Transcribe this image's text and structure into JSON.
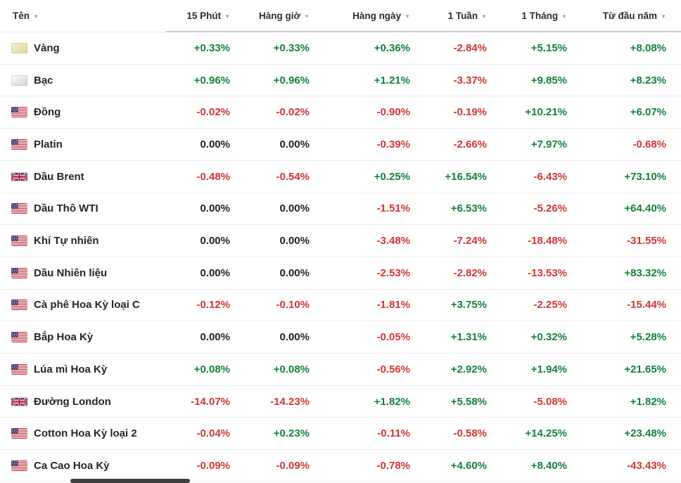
{
  "colors": {
    "positive": "#15803d",
    "negative": "#d23535",
    "neutral": "#202226"
  },
  "icons": {
    "sort_arrow": "▼"
  },
  "table": {
    "columns": [
      {
        "label": "Tên"
      },
      {
        "label": "15 Phút"
      },
      {
        "label": "Hàng giờ"
      },
      {
        "label": "Hàng ngày"
      },
      {
        "label": "1 Tuần"
      },
      {
        "label": "1 Tháng"
      },
      {
        "label": "Từ đầu năm"
      }
    ],
    "rows": [
      {
        "name": "Vàng",
        "flag": "gold",
        "values": [
          "+0.33%",
          "+0.33%",
          "+0.36%",
          "-2.84%",
          "+5.15%",
          "+8.08%"
        ]
      },
      {
        "name": "Bạc",
        "flag": "silver",
        "values": [
          "+0.96%",
          "+0.96%",
          "+1.21%",
          "-3.37%",
          "+9.85%",
          "+8.23%"
        ]
      },
      {
        "name": "Đồng",
        "flag": "us",
        "values": [
          "-0.02%",
          "-0.02%",
          "-0.90%",
          "-0.19%",
          "+10.21%",
          "+6.07%"
        ]
      },
      {
        "name": "Platin",
        "flag": "us",
        "values": [
          "0.00%",
          "0.00%",
          "-0.39%",
          "-2.66%",
          "+7.97%",
          "-0.68%"
        ]
      },
      {
        "name": "Dầu Brent",
        "flag": "uk",
        "values": [
          "-0.48%",
          "-0.54%",
          "+0.25%",
          "+16.54%",
          "-6.43%",
          "+73.10%"
        ]
      },
      {
        "name": "Dầu Thô WTI",
        "flag": "us",
        "values": [
          "0.00%",
          "0.00%",
          "-1.51%",
          "+6.53%",
          "-5.26%",
          "+64.40%"
        ]
      },
      {
        "name": "Khí Tự nhiên",
        "flag": "us",
        "values": [
          "0.00%",
          "0.00%",
          "-3.48%",
          "-7.24%",
          "-18.48%",
          "-31.55%"
        ]
      },
      {
        "name": "Dầu Nhiên liệu",
        "flag": "us",
        "values": [
          "0.00%",
          "0.00%",
          "-2.53%",
          "-2.82%",
          "-13.53%",
          "+83.32%"
        ]
      },
      {
        "name": "Cà phê Hoa Kỳ loại C",
        "flag": "us",
        "values": [
          "-0.12%",
          "-0.10%",
          "-1.81%",
          "+3.75%",
          "-2.25%",
          "-15.44%"
        ]
      },
      {
        "name": "Bắp Hoa Kỳ",
        "flag": "us",
        "values": [
          "0.00%",
          "0.00%",
          "-0.05%",
          "+1.31%",
          "+0.32%",
          "+5.28%"
        ]
      },
      {
        "name": "Lúa mì Hoa Kỳ",
        "flag": "us",
        "values": [
          "+0.08%",
          "+0.08%",
          "-0.56%",
          "+2.92%",
          "+1.94%",
          "+21.65%"
        ]
      },
      {
        "name": "Đường London",
        "flag": "uk",
        "values": [
          "-14.07%",
          "-14.23%",
          "+1.82%",
          "+5.58%",
          "-5.08%",
          "+1.82%"
        ]
      },
      {
        "name": "Cotton Hoa Kỳ loại 2",
        "flag": "us",
        "values": [
          "-0.04%",
          "+0.23%",
          "-0.11%",
          "-0.58%",
          "+14.25%",
          "+23.48%"
        ]
      },
      {
        "name": "Ca Cao Hoa Kỳ",
        "flag": "us",
        "values": [
          "-0.09%",
          "-0.09%",
          "-0.78%",
          "+4.60%",
          "+8.40%",
          "-43.43%"
        ]
      }
    ]
  }
}
